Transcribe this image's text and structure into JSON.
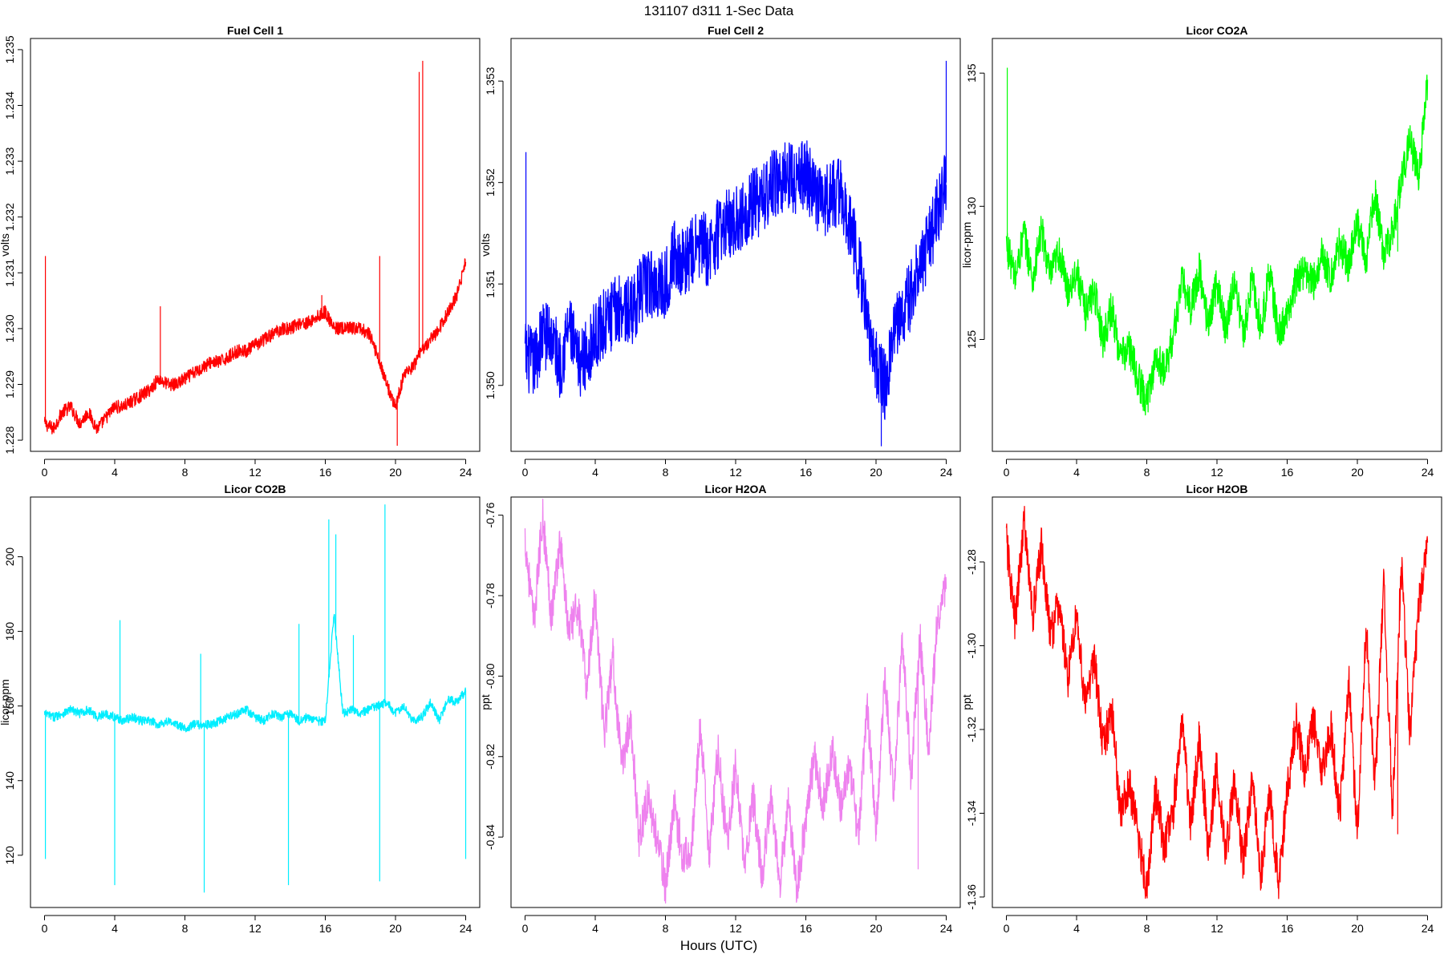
{
  "figure": {
    "title": "131107   d311   1-Sec Data",
    "xlabel": "Hours (UTC)"
  },
  "chart_data": [
    {
      "type": "line",
      "title": "Fuel Cell 1",
      "ylabel": "volts",
      "color": "#ff0000",
      "xlim": [
        -0.8,
        24.8
      ],
      "ylim": [
        1.2278,
        1.2352
      ],
      "xticks": [
        0,
        4,
        8,
        12,
        16,
        20,
        24
      ],
      "yticks": [
        1.228,
        1.229,
        1.23,
        1.231,
        1.232,
        1.233,
        1.234,
        1.235
      ],
      "ytick_labels": [
        "1.228",
        "1.229",
        "1.230",
        "1.231",
        "1.232",
        "1.233",
        "1.234",
        "1.235"
      ],
      "series": [
        {
          "x": [
            0,
            0.5,
            1,
            1.5,
            2,
            2.5,
            3,
            3.5,
            4,
            4.5,
            5,
            5.5,
            6,
            6.5,
            7,
            7.5,
            8,
            8.5,
            9,
            9.5,
            10,
            10.5,
            11,
            11.5,
            12,
            12.5,
            13,
            13.5,
            14,
            14.5,
            15,
            15.5,
            16,
            16.5,
            17,
            17.5,
            18,
            18.5,
            19,
            19.5,
            20,
            20.5,
            21,
            21.5,
            22,
            22.5,
            23,
            23.5,
            24
          ],
          "y": [
            1.2283,
            1.2282,
            1.2285,
            1.2286,
            1.2283,
            1.2285,
            1.2282,
            1.2284,
            1.2286,
            1.2286,
            1.2287,
            1.2288,
            1.2289,
            1.2291,
            1.229,
            1.229,
            1.2291,
            1.2292,
            1.2293,
            1.2294,
            1.2294,
            1.2295,
            1.2296,
            1.2296,
            1.2297,
            1.2298,
            1.2299,
            1.23,
            1.23,
            1.2301,
            1.2301,
            1.2302,
            1.2303,
            1.23,
            1.23,
            1.23,
            1.23,
            1.2299,
            1.2295,
            1.229,
            1.2286,
            1.2292,
            1.2293,
            1.2296,
            1.2298,
            1.23,
            1.2303,
            1.2306,
            1.2312
          ],
          "noise": 0.00012,
          "spikes": [
            [
              0.05,
              1.2313
            ],
            [
              6.6,
              1.2304
            ],
            [
              15.8,
              1.2306
            ],
            [
              19.1,
              1.2313
            ],
            [
              21.35,
              1.2346
            ],
            [
              21.55,
              1.2348
            ],
            [
              20.1,
              1.2279
            ]
          ]
        }
      ]
    },
    {
      "type": "line",
      "title": "Fuel Cell 2",
      "ylabel": "volts",
      "color": "#0000ff",
      "xlim": [
        -0.8,
        24.8
      ],
      "ylim": [
        1.34935,
        1.35342
      ],
      "xticks": [
        0,
        4,
        8,
        12,
        16,
        20,
        24
      ],
      "yticks": [
        1.35,
        1.351,
        1.352,
        1.353
      ],
      "ytick_labels": [
        "1.350",
        "1.351",
        "1.352",
        "1.353"
      ],
      "series": [
        {
          "x": [
            0,
            0.5,
            1,
            1.5,
            2,
            2.5,
            3,
            3.5,
            4,
            4.5,
            5,
            5.5,
            6,
            6.5,
            7,
            7.5,
            8,
            8.5,
            9,
            9.5,
            10,
            10.5,
            11,
            11.5,
            12,
            12.5,
            13,
            13.5,
            14,
            14.5,
            15,
            15.5,
            16,
            16.5,
            17,
            17.5,
            18,
            18.5,
            19,
            19.5,
            20,
            20.5,
            21,
            21.5,
            22,
            22.5,
            23,
            23.5,
            24
          ],
          "y": [
            1.3503,
            1.3502,
            1.3505,
            1.3505,
            1.3502,
            1.3506,
            1.3502,
            1.3503,
            1.3505,
            1.3506,
            1.3507,
            1.3508,
            1.3507,
            1.3509,
            1.351,
            1.351,
            1.351,
            1.3513,
            1.3512,
            1.3513,
            1.3514,
            1.3513,
            1.3515,
            1.3516,
            1.3516,
            1.3517,
            1.3518,
            1.3518,
            1.352,
            1.352,
            1.3521,
            1.352,
            1.3521,
            1.3519,
            1.3518,
            1.3519,
            1.3519,
            1.3516,
            1.3512,
            1.3507,
            1.3502,
            1.35,
            1.3505,
            1.3507,
            1.3509,
            1.3512,
            1.3514,
            1.3517,
            1.352
          ],
          "noise": 0.00035,
          "spikes": [
            [
              0.05,
              1.3523
            ],
            [
              24.0,
              1.3532
            ],
            [
              20.3,
              1.3494
            ]
          ]
        }
      ]
    },
    {
      "type": "line",
      "title": "Licor CO2A",
      "ylabel": "licor-ppm",
      "color": "#00ff00",
      "xlim": [
        -0.8,
        24.8
      ],
      "ylim": [
        120.8,
        136.3
      ],
      "xticks": [
        0,
        4,
        8,
        12,
        16,
        20,
        24
      ],
      "yticks": [
        125,
        130,
        135
      ],
      "ytick_labels": [
        "125",
        "130",
        "135"
      ],
      "series": [
        {
          "x": [
            0,
            0.5,
            1,
            1.5,
            2,
            2.5,
            3,
            3.5,
            4,
            4.5,
            5,
            5.5,
            6,
            6.5,
            7,
            7.5,
            8,
            8.5,
            9,
            9.5,
            10,
            10.5,
            11,
            11.5,
            12,
            12.5,
            13,
            13.5,
            14,
            14.5,
            15,
            15.5,
            16,
            16.5,
            17,
            17.5,
            18,
            18.5,
            19,
            19.5,
            20,
            20.5,
            21,
            21.5,
            22,
            22.5,
            23,
            23.5,
            24
          ],
          "y": [
            128.6,
            127.3,
            129.0,
            127.2,
            129.1,
            127.3,
            128.3,
            126.8,
            127.6,
            126.0,
            126.9,
            125.0,
            126.2,
            124.3,
            124.7,
            123.5,
            122.7,
            124.3,
            123.8,
            125.1,
            127.2,
            126.2,
            127.6,
            125.5,
            127.2,
            125.3,
            127.3,
            125.1,
            127.3,
            125.4,
            127.5,
            125.2,
            125.8,
            127.2,
            127.6,
            127.1,
            128.2,
            127.3,
            128.6,
            127.8,
            129.3,
            128.0,
            130.5,
            128.2,
            129.0,
            131.0,
            132.5,
            131.0,
            134.8
          ],
          "noise": 0.7,
          "spikes": [
            [
              0.05,
              135.2
            ],
            [
              21.4,
              128.0
            ],
            [
              22.3,
              128.3
            ]
          ]
        }
      ]
    },
    {
      "type": "line",
      "title": "Licor CO2B",
      "ylabel": "licor-ppm",
      "color": "#00eeff",
      "xlim": [
        -0.8,
        24.8
      ],
      "ylim": [
        106,
        216
      ],
      "xticks": [
        0,
        4,
        8,
        12,
        16,
        20,
        24
      ],
      "yticks": [
        120,
        140,
        160,
        180,
        200
      ],
      "ytick_labels": [
        "120",
        "140",
        "160",
        "180",
        "200"
      ],
      "series": [
        {
          "x": [
            0,
            0.5,
            1,
            1.5,
            2,
            2.5,
            3,
            3.5,
            4,
            4.5,
            5,
            5.5,
            6,
            6.5,
            7,
            7.5,
            8,
            8.5,
            9,
            9.5,
            10,
            10.5,
            11,
            11.5,
            12,
            12.5,
            13,
            13.5,
            14,
            14.5,
            15,
            15.5,
            16,
            16.5,
            17,
            17.5,
            18,
            18.5,
            19,
            19.5,
            20,
            20.5,
            21,
            21.5,
            22,
            22.5,
            23,
            23.5,
            24
          ],
          "y": [
            158,
            157,
            158,
            159,
            158,
            159,
            157,
            158,
            157,
            156,
            157,
            156,
            156,
            155,
            156,
            155,
            154,
            155,
            155,
            155,
            156,
            157,
            158,
            159,
            157,
            156,
            158,
            157,
            158,
            156,
            157,
            156,
            156,
            185,
            158,
            159,
            158,
            159,
            160,
            161,
            158,
            160,
            156,
            157,
            161,
            156,
            162,
            161,
            164
          ],
          "noise": 1.2,
          "spikes": [
            [
              0.05,
              119
            ],
            [
              4.0,
              112
            ],
            [
              4.3,
              183
            ],
            [
              9.1,
              110
            ],
            [
              8.9,
              174
            ],
            [
              13.9,
              112
            ],
            [
              14.5,
              182
            ],
            [
              16.2,
              210
            ],
            [
              16.6,
              206
            ],
            [
              17.6,
              179
            ],
            [
              19.1,
              113
            ],
            [
              19.4,
              214
            ],
            [
              24.0,
              119
            ]
          ]
        }
      ]
    },
    {
      "type": "line",
      "title": "Licor H2OA",
      "ylabel": "ppt",
      "color": "#ee82ee",
      "xlim": [
        -0.8,
        24.8
      ],
      "ylim": [
        -0.8575,
        -0.7555
      ],
      "xticks": [
        0,
        4,
        8,
        12,
        16,
        20,
        24
      ],
      "yticks": [
        -0.84,
        -0.82,
        -0.8,
        -0.78,
        -0.76
      ],
      "ytick_labels": [
        "-0.84",
        "-0.82",
        "-0.80",
        "-0.78",
        "-0.76"
      ],
      "series": [
        {
          "x": [
            0,
            0.5,
            1,
            1.5,
            2,
            2.5,
            3,
            3.5,
            4,
            4.5,
            5,
            5.5,
            6,
            6.5,
            7,
            7.5,
            8,
            8.5,
            9,
            9.5,
            10,
            10.5,
            11,
            11.5,
            12,
            12.5,
            13,
            13.5,
            14,
            14.5,
            15,
            15.5,
            16,
            16.5,
            17,
            17.5,
            18,
            18.5,
            19,
            19.5,
            20,
            20.5,
            21,
            21.5,
            22,
            22.5,
            23,
            23.5,
            24
          ],
          "y": [
            -0.766,
            -0.787,
            -0.76,
            -0.785,
            -0.766,
            -0.79,
            -0.782,
            -0.803,
            -0.78,
            -0.815,
            -0.795,
            -0.823,
            -0.81,
            -0.84,
            -0.83,
            -0.84,
            -0.852,
            -0.832,
            -0.845,
            -0.842,
            -0.812,
            -0.845,
            -0.818,
            -0.842,
            -0.822,
            -0.848,
            -0.83,
            -0.85,
            -0.83,
            -0.852,
            -0.832,
            -0.853,
            -0.835,
            -0.82,
            -0.832,
            -0.818,
            -0.833,
            -0.822,
            -0.84,
            -0.808,
            -0.838,
            -0.8,
            -0.83,
            -0.79,
            -0.825,
            -0.79,
            -0.818,
            -0.785,
            -0.778
          ],
          "noise": 0.005,
          "spikes": [
            [
              22.4,
              -0.848
            ]
          ]
        }
      ]
    },
    {
      "type": "line",
      "title": "Licor H2OB",
      "ylabel": "ppt",
      "color": "#ff0000",
      "xlim": [
        -0.8,
        24.8
      ],
      "ylim": [
        -1.3625,
        -1.2645
      ],
      "xticks": [
        0,
        4,
        8,
        12,
        16,
        20,
        24
      ],
      "yticks": [
        -1.36,
        -1.34,
        -1.32,
        -1.3,
        -1.28
      ],
      "ytick_labels": [
        "-1.36",
        "-1.34",
        "-1.32",
        "-1.30",
        "-1.28"
      ],
      "series": [
        {
          "x": [
            0,
            0.5,
            1,
            1.5,
            2,
            2.5,
            3,
            3.5,
            4,
            4.5,
            5,
            5.5,
            6,
            6.5,
            7,
            7.5,
            8,
            8.5,
            9,
            9.5,
            10,
            10.5,
            11,
            11.5,
            12,
            12.5,
            13,
            13.5,
            14,
            14.5,
            15,
            15.5,
            16,
            16.5,
            17,
            17.5,
            18,
            18.5,
            19,
            19.5,
            20,
            20.5,
            21,
            21.5,
            22,
            22.5,
            23,
            23.5,
            24
          ],
          "y": [
            -1.275,
            -1.295,
            -1.27,
            -1.293,
            -1.276,
            -1.298,
            -1.29,
            -1.308,
            -1.292,
            -1.315,
            -1.302,
            -1.325,
            -1.315,
            -1.34,
            -1.333,
            -1.345,
            -1.358,
            -1.335,
            -1.348,
            -1.34,
            -1.318,
            -1.342,
            -1.322,
            -1.348,
            -1.328,
            -1.35,
            -1.332,
            -1.352,
            -1.332,
            -1.355,
            -1.335,
            -1.357,
            -1.335,
            -1.318,
            -1.33,
            -1.318,
            -1.33,
            -1.32,
            -1.34,
            -1.308,
            -1.345,
            -1.295,
            -1.335,
            -1.285,
            -1.34,
            -1.28,
            -1.322,
            -1.29,
            -1.275
          ],
          "noise": 0.005,
          "spikes": [
            [
              22.3,
              -1.345
            ]
          ]
        }
      ]
    }
  ]
}
